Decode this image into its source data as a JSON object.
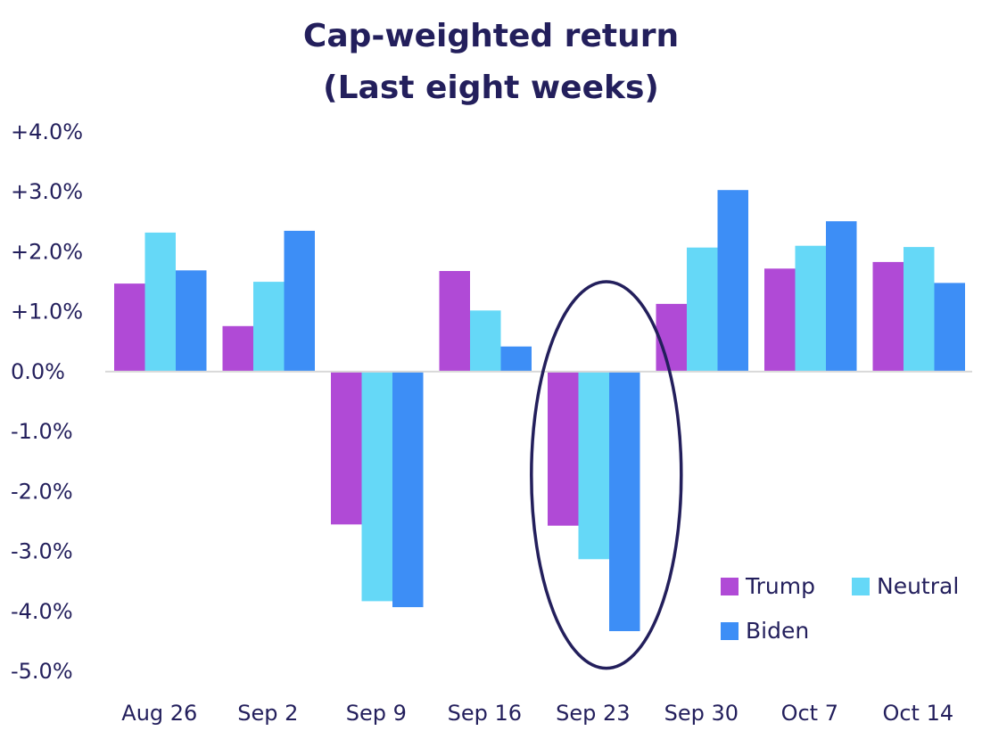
{
  "chart_data": {
    "type": "bar",
    "title": [
      "Cap-weighted return",
      "(Last eight weeks)"
    ],
    "xlabel": "",
    "ylabel": "",
    "categories": [
      "Aug 26",
      "Sep 2",
      "Sep 9",
      "Sep 16",
      "Sep 23",
      "Sep 30",
      "Oct 7",
      "Oct 14"
    ],
    "series": [
      {
        "name": "Trump",
        "color": "#b04ad6",
        "values": [
          1.47,
          0.76,
          -2.55,
          1.68,
          -2.57,
          1.13,
          1.72,
          1.83
        ]
      },
      {
        "name": "Neutral",
        "color": "#65d8f7",
        "values": [
          2.32,
          1.5,
          -3.83,
          1.02,
          -3.13,
          2.07,
          2.1,
          2.08
        ]
      },
      {
        "name": "Biden",
        "color": "#3d8ef6",
        "values": [
          1.69,
          2.35,
          -3.93,
          0.42,
          -4.33,
          3.03,
          2.51,
          1.48
        ]
      }
    ],
    "ylim": [
      -5.0,
      4.0
    ],
    "yticks": [
      4,
      3,
      2,
      1,
      0,
      -1,
      -2,
      -3,
      -4,
      -5
    ],
    "ytick_labels": [
      "+4.0%",
      "+3.0%",
      "+2.0%",
      "+1.0%",
      "0.0%",
      "-1.0%",
      "-2.0%",
      "-3.0%",
      "-4.0%",
      "-5.0%"
    ],
    "grid": false,
    "legend_position": "bottom-right",
    "annotation": {
      "shape": "ellipse",
      "highlight_category": "Sep 23",
      "color": "#231f5c"
    }
  }
}
